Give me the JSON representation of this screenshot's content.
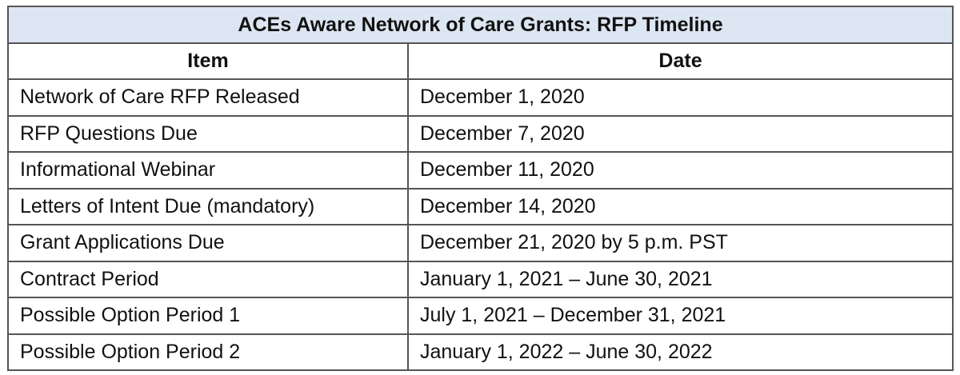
{
  "table": {
    "title": "ACEs Aware Network of Care Grants:  RFP Timeline",
    "headers": {
      "item": "Item",
      "date": "Date"
    },
    "rows": [
      {
        "item": "Network of Care RFP Released",
        "date": "December 1, 2020"
      },
      {
        "item": "RFP Questions Due",
        "date": "December 7, 2020"
      },
      {
        "item": "Informational Webinar",
        "date": "December 11, 2020"
      },
      {
        "item": "Letters of Intent Due (mandatory)",
        "date": "December 14, 2020"
      },
      {
        "item": "Grant Applications Due",
        "date": "December 21, 2020 by 5 p.m. PST"
      },
      {
        "item": "Contract Period",
        "date": "January 1, 2021 – June 30, 2021"
      },
      {
        "item": "Possible Option Period 1",
        "date": "July 1, 2021 – December 31, 2021"
      },
      {
        "item": "Possible Option Period 2",
        "date": "January 1, 2022 – June 30, 2022"
      }
    ],
    "colors": {
      "title_background": "#dce6f2",
      "border": "#555555"
    }
  }
}
